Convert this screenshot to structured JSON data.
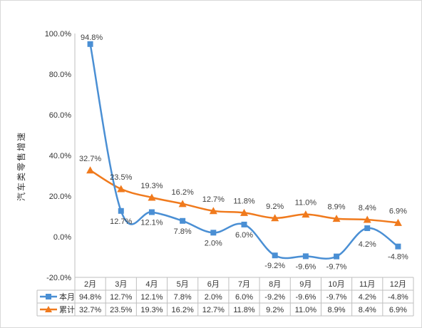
{
  "chart_data": {
    "type": "line",
    "categories": [
      "2月",
      "3月",
      "4月",
      "5月",
      "6月",
      "7月",
      "8月",
      "9月",
      "10月",
      "11月",
      "12月"
    ],
    "series": [
      {
        "name": "本月",
        "color": "#4a8fd4",
        "marker": "square",
        "values": [
          94.8,
          12.7,
          12.1,
          7.8,
          2.0,
          6.0,
          -9.2,
          -9.6,
          -9.7,
          4.2,
          -4.8
        ],
        "labels": [
          "94.8%",
          "12.7%",
          "12.1%",
          "7.8%",
          "2.0%",
          "6.0%",
          "-9.2%",
          "-9.6%",
          "-9.7%",
          "4.2%",
          "-4.8%"
        ]
      },
      {
        "name": "累计",
        "color": "#f07a1d",
        "marker": "triangle",
        "values": [
          32.7,
          23.5,
          19.3,
          16.2,
          12.7,
          11.8,
          9.2,
          11.0,
          8.9,
          8.4,
          6.9
        ],
        "labels": [
          "32.7%",
          "23.5%",
          "19.3%",
          "16.2%",
          "12.7%",
          "11.8%",
          "9.2%",
          "11.0%",
          "8.9%",
          "8.4%",
          "6.9%"
        ]
      }
    ],
    "ylabel": "汽车类零售增速",
    "ylim": [
      -20,
      100
    ],
    "yticks": [
      "-20.0%",
      "0.0%",
      "20.0%",
      "40.0%",
      "60.0%",
      "80.0%",
      "100.0%"
    ],
    "ytick_values": [
      -20,
      0,
      20,
      40,
      60,
      80,
      100
    ],
    "grid": false,
    "legend": "data-table",
    "smooth": true
  }
}
